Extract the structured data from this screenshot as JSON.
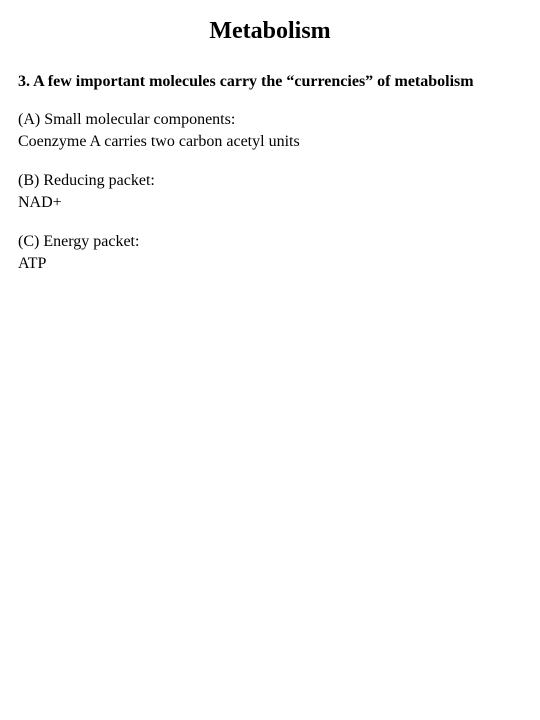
{
  "title": "Metabolism",
  "heading": "3.  A few important molecules carry the “currencies” of metabolism",
  "sections": [
    {
      "label": "(A)  Small molecular components:",
      "detail": "Coenzyme A carries two carbon acetyl units"
    },
    {
      "label": "(B)  Reducing packet:",
      "detail": "NAD+"
    },
    {
      "label": "(C)  Energy packet:",
      "detail": "ATP"
    }
  ],
  "style": {
    "background_color": "#ffffff",
    "text_color": "#000000",
    "font_family": "Times New Roman",
    "title_fontsize": 24,
    "heading_fontsize": 16,
    "body_fontsize": 16
  }
}
